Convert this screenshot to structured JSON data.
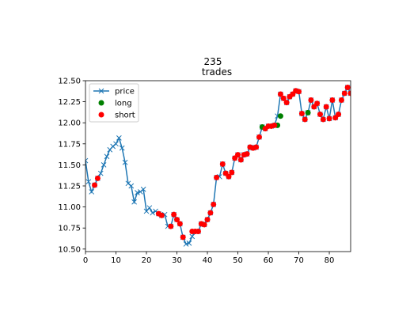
{
  "chart_data": {
    "type": "line",
    "title": "235",
    "subtitle": "trades",
    "xlabel": "",
    "ylabel": "",
    "xlim": [
      0,
      87
    ],
    "ylim": [
      10.47,
      12.5
    ],
    "xticks": [
      0,
      10,
      20,
      30,
      40,
      50,
      60,
      70,
      80
    ],
    "yticks": [
      10.5,
      10.75,
      11.0,
      11.25,
      11.5,
      11.75,
      12.0,
      12.25,
      12.5
    ],
    "ytick_labels": [
      "10.50",
      "10.75",
      "11.00",
      "11.25",
      "11.50",
      "11.75",
      "12.00",
      "12.25",
      "12.50"
    ],
    "grid": false,
    "legend_position": "top-left",
    "series": [
      {
        "name": "price",
        "style": "line-x",
        "color": "#1f77b4",
        "x": [
          0,
          1,
          2,
          3,
          4,
          5,
          6,
          7,
          8,
          9,
          10,
          11,
          12,
          13,
          14,
          15,
          16,
          17,
          18,
          19,
          20,
          21,
          22,
          23,
          24,
          25,
          26,
          27,
          28,
          29,
          30,
          31,
          32,
          33,
          34,
          35,
          36,
          37,
          38,
          39,
          40,
          41,
          42,
          43,
          44,
          45,
          46,
          47,
          48,
          49,
          50,
          51,
          52,
          53,
          54,
          55,
          56,
          57,
          58,
          59,
          60,
          61,
          62,
          63,
          64,
          65,
          66,
          67,
          68,
          69,
          70,
          71,
          72,
          73,
          74,
          75,
          76,
          77,
          78,
          79,
          80,
          81,
          82,
          83,
          84,
          85,
          86,
          87
        ],
        "y": [
          11.55,
          11.3,
          11.18,
          11.26,
          11.34,
          11.4,
          11.5,
          11.6,
          11.68,
          11.72,
          11.75,
          11.82,
          11.7,
          11.53,
          11.28,
          11.25,
          11.06,
          11.17,
          11.18,
          11.21,
          10.95,
          10.99,
          10.93,
          10.95,
          10.92,
          10.9,
          10.91,
          10.77,
          10.77,
          10.91,
          10.85,
          10.8,
          10.64,
          10.56,
          10.57,
          10.65,
          10.71,
          10.71,
          10.8,
          10.79,
          10.85,
          10.93,
          11.03,
          11.35,
          11.36,
          11.51,
          11.4,
          11.36,
          11.41,
          11.58,
          11.62,
          11.56,
          11.62,
          11.63,
          11.71,
          11.7,
          11.71,
          11.83,
          11.95,
          11.93,
          11.96,
          11.96,
          11.97,
          12.08,
          12.34,
          12.29,
          12.24,
          12.31,
          12.34,
          12.38,
          12.37,
          12.11,
          12.04,
          12.12,
          12.27,
          12.19,
          12.23,
          12.1,
          12.04,
          12.19,
          12.05,
          12.27,
          12.06,
          12.1,
          12.27,
          12.35,
          12.42,
          12.35
        ]
      },
      {
        "name": "long",
        "style": "dot",
        "color": "#008000",
        "x": [
          58,
          63,
          64,
          73
        ],
        "y": [
          11.95,
          11.97,
          12.08,
          12.12
        ]
      },
      {
        "name": "short",
        "style": "dot",
        "color": "#ff0000",
        "x": [
          3,
          4,
          24,
          25,
          28,
          29,
          30,
          31,
          32,
          35,
          36,
          37,
          38,
          39,
          40,
          41,
          42,
          43,
          45,
          46,
          47,
          48,
          49,
          50,
          51,
          52,
          53,
          54,
          55,
          56,
          57,
          59,
          60,
          61,
          62,
          64,
          65,
          66,
          67,
          68,
          69,
          70,
          71,
          72,
          74,
          75,
          76,
          77,
          78,
          79,
          80,
          81,
          82,
          83,
          84,
          85,
          86,
          87
        ],
        "y": [
          11.26,
          11.34,
          10.92,
          10.9,
          10.77,
          10.91,
          10.85,
          10.8,
          10.64,
          10.71,
          10.71,
          10.71,
          10.8,
          10.79,
          10.85,
          10.93,
          11.03,
          11.35,
          11.51,
          11.4,
          11.36,
          11.41,
          11.58,
          11.62,
          11.56,
          11.62,
          11.63,
          11.71,
          11.7,
          11.71,
          11.83,
          11.93,
          11.96,
          11.96,
          11.97,
          12.34,
          12.29,
          12.24,
          12.31,
          12.34,
          12.38,
          12.37,
          12.11,
          12.04,
          12.27,
          12.19,
          12.23,
          12.1,
          12.04,
          12.19,
          12.05,
          12.27,
          12.06,
          12.1,
          12.27,
          12.35,
          12.42,
          12.35
        ]
      }
    ]
  }
}
